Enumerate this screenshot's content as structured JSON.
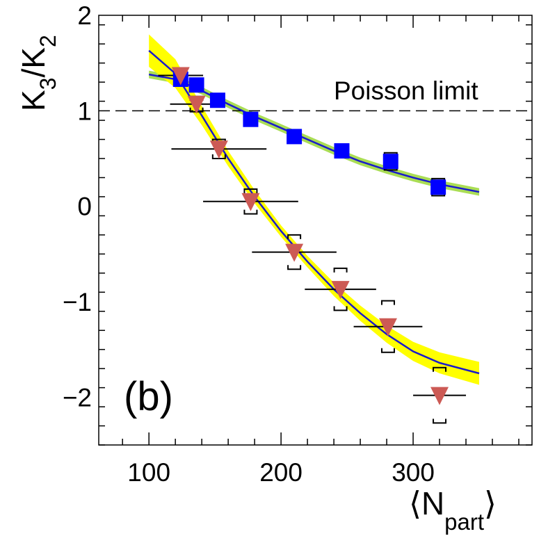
{
  "chart_data": {
    "type": "scatter",
    "panel_label": "(b)",
    "xlabel_base": "⟨N",
    "xlabel_sub": "part",
    "xlabel_close": "⟩",
    "ylabel_k": "K",
    "ylabel_sub3": "3",
    "ylabel_slash": "/K",
    "ylabel_sub2": "2",
    "xlim": [
      62,
      390
    ],
    "ylim": [
      -2.5,
      2.0
    ],
    "x_ticks": [
      100,
      200,
      300
    ],
    "x_tick_labels": [
      "100",
      "200",
      "300"
    ],
    "y_ticks": [
      -2,
      -1,
      0,
      1,
      2
    ],
    "y_tick_labels": [
      "−2",
      "−1",
      "0",
      "1",
      "2"
    ],
    "reference_line": {
      "y": 1,
      "label": "Poisson limit",
      "style": "dashed"
    },
    "series": [
      {
        "name": "squares",
        "marker": "square",
        "color": "#0000ff",
        "band_color": "#aadd55",
        "x": [
          124,
          136,
          152,
          177,
          210,
          246,
          283,
          319
        ],
        "y": [
          1.33,
          1.27,
          1.11,
          0.91,
          0.73,
          0.58,
          0.47,
          0.2
        ],
        "sys_err": [
          0.07,
          0.07,
          0.07,
          0.07,
          0.07,
          0.07,
          0.09,
          0.09
        ],
        "fit_curve": {
          "x": [
            100,
            120,
            140,
            160,
            180,
            200,
            220,
            240,
            260,
            280,
            300,
            320,
            350
          ],
          "y": [
            1.38,
            1.33,
            1.21,
            1.07,
            0.94,
            0.82,
            0.7,
            0.58,
            0.47,
            0.38,
            0.3,
            0.23,
            0.15
          ],
          "band_halfwidth": 0.04
        }
      },
      {
        "name": "triangles",
        "marker": "triangle-down",
        "color": "#cc5a55",
        "band_color": "#ffff00",
        "x": [
          124,
          136,
          153,
          177,
          210,
          245,
          281,
          320
        ],
        "y": [
          1.37,
          1.07,
          0.6,
          0.05,
          -0.48,
          -0.87,
          -1.26,
          -1.98
        ],
        "x_err": [
          17,
          20,
          36,
          36,
          32,
          27,
          26,
          20
        ],
        "sys_err": [
          0.08,
          0.08,
          0.1,
          0.13,
          0.18,
          0.22,
          0.27,
          0.29
        ],
        "fit_curve": {
          "x": [
            100,
            120,
            140,
            160,
            180,
            200,
            220,
            240,
            260,
            280,
            300,
            320,
            350
          ],
          "y": [
            1.63,
            1.39,
            0.95,
            0.5,
            0.1,
            -0.26,
            -0.58,
            -0.87,
            -1.12,
            -1.34,
            -1.52,
            -1.64,
            -1.75
          ],
          "band_halfwidth": [
            0.17,
            0.15,
            0.1,
            0.08,
            0.07,
            0.06,
            0.06,
            0.07,
            0.08,
            0.09,
            0.1,
            0.11,
            0.12
          ]
        }
      }
    ]
  }
}
